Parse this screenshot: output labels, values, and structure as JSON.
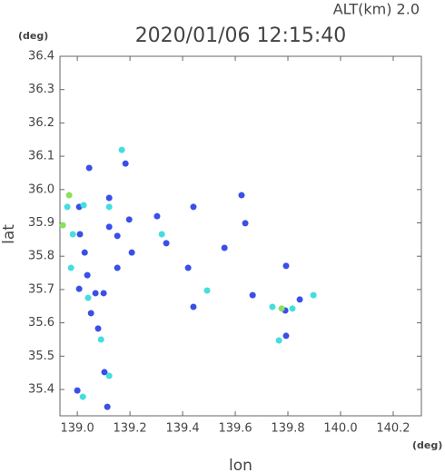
{
  "chart_data": {
    "type": "scatter",
    "title": "2020/01/06 12:15:40",
    "subtitle": "ALT(km) 2.0",
    "x_label": "lon",
    "y_label": "lat",
    "x_unit": "(deg)",
    "y_unit": "(deg)",
    "xlim": [
      138.934,
      140.307
    ],
    "ylim": [
      35.321,
      36.4
    ],
    "xticks": [
      {
        "value": 139,
        "label": "139.0"
      },
      139.2,
      139.4,
      139.6,
      139.8,
      {
        "value": 140,
        "label": "140.0"
      },
      140.2
    ],
    "yticks": [
      36.4,
      36.3,
      36.2,
      36.1,
      {
        "value": 36,
        "label": "36.0"
      },
      35.9,
      35.8,
      35.7,
      35.6,
      35.5,
      35.4
    ],
    "series": [
      {
        "color": "#3a4fe8",
        "x": [
          139.045,
          139.007,
          139.01,
          139.121,
          139.121,
          139.197,
          139.207,
          139.028,
          139.038,
          139.007,
          139.069,
          139.1,
          139.052,
          139.079,
          139.103,
          139.0,
          139.114,
          139.303,
          139.338,
          139.441,
          139.421,
          139.441,
          139.624,
          139.559,
          139.638,
          139.666,
          139.79,
          139.845,
          139.793,
          139.793,
          139.183,
          139.152,
          139.152
        ],
        "y": [
          36.065,
          35.948,
          35.866,
          35.975,
          35.888,
          35.91,
          35.811,
          35.811,
          35.743,
          35.702,
          35.689,
          35.689,
          35.629,
          35.583,
          35.452,
          35.397,
          35.348,
          35.92,
          35.839,
          35.948,
          35.765,
          35.648,
          35.983,
          35.825,
          35.899,
          35.683,
          35.637,
          35.67,
          35.771,
          35.561,
          36.078,
          35.861,
          35.765
        ]
      },
      {
        "color": "#44dde0",
        "x": [
          139.169,
          138.962,
          139.024,
          138.983,
          139.121,
          138.976,
          139.041,
          139.09,
          139.121,
          139.021,
          139.321,
          139.493,
          139.741,
          139.817,
          139.897,
          139.766
        ],
        "y": [
          36.119,
          35.948,
          35.953,
          35.866,
          35.948,
          35.765,
          35.675,
          35.55,
          35.441,
          35.378,
          35.866,
          35.697,
          35.648,
          35.643,
          35.683,
          35.547
        ]
      },
      {
        "color": "#8ae060",
        "x": [
          138.969,
          138.945,
          139.776
        ],
        "y": [
          35.983,
          35.893,
          35.643
        ]
      }
    ]
  }
}
